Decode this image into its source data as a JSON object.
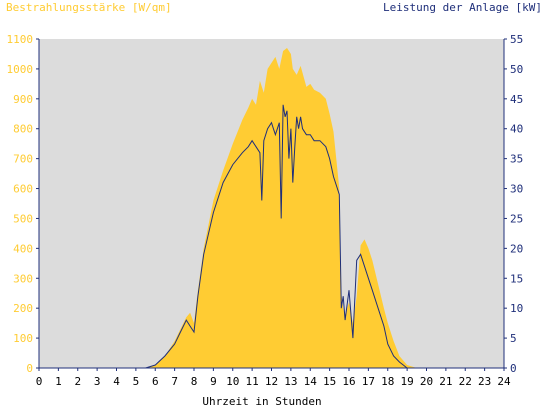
{
  "chart_data": {
    "type": "area",
    "title_left": "Bestrahlungsstärke [W/qm]",
    "title_right": "Leistung der Anlage [kW]",
    "xlabel": "Uhrzeit in Stunden",
    "x_ticks": [
      "0",
      "1",
      "2",
      "3",
      "4",
      "5",
      "6",
      "7",
      "8",
      "9",
      "10",
      "11",
      "12",
      "13",
      "14",
      "15",
      "16",
      "17",
      "18",
      "19",
      "20",
      "21",
      "22",
      "23",
      "24"
    ],
    "y_left_ticks": [
      "0",
      "100",
      "200",
      "300",
      "400",
      "500",
      "600",
      "700",
      "800",
      "900",
      "1000",
      "1100"
    ],
    "y_right_ticks": [
      "0",
      "5",
      "10",
      "15",
      "20",
      "25",
      "30",
      "35",
      "40",
      "45",
      "50",
      "55"
    ],
    "xlim": [
      0,
      24
    ],
    "ylim_left": [
      0,
      1100
    ],
    "ylim_right": [
      0,
      55
    ],
    "colors": {
      "irradiance": "#ffcc33",
      "power": "#1f2f7a",
      "background": "#dcdcdc",
      "left_axis_text": "#ffcc33",
      "right_axis_text": "#1f2f7a",
      "grid": "#1f2f7a"
    },
    "series": [
      {
        "axis": "left",
        "style": "area",
        "x": [
          0,
          5.5,
          6,
          6.5,
          7,
          7.3,
          7.6,
          7.8,
          8,
          8.2,
          8.5,
          9,
          9.5,
          10,
          10.5,
          10.8,
          11,
          11.2,
          11.4,
          11.6,
          11.8,
          12,
          12.2,
          12.4,
          12.6,
          12.8,
          13,
          13.1,
          13.3,
          13.5,
          13.8,
          14,
          14.2,
          14.5,
          14.8,
          15,
          15.2,
          15.5,
          15.6,
          15.7,
          15.8,
          16,
          16.2,
          16.4,
          16.6,
          16.8,
          17,
          17.2,
          17.5,
          17.8,
          18,
          18.3,
          18.6,
          19,
          19.5,
          20,
          24
        ],
        "y": [
          0,
          0,
          10,
          40,
          90,
          130,
          170,
          185,
          150,
          260,
          400,
          560,
          660,
          750,
          830,
          870,
          900,
          880,
          960,
          920,
          1000,
          1020,
          1040,
          1000,
          1060,
          1070,
          1050,
          1000,
          980,
          1010,
          940,
          950,
          930,
          920,
          900,
          850,
          790,
          600,
          250,
          200,
          180,
          220,
          150,
          240,
          410,
          430,
          400,
          360,
          280,
          200,
          150,
          90,
          40,
          10,
          0,
          0,
          0
        ]
      },
      {
        "axis": "right",
        "style": "line",
        "x": [
          0,
          5.5,
          6,
          6.5,
          7,
          7.3,
          7.6,
          7.8,
          8,
          8.2,
          8.5,
          9,
          9.5,
          10,
          10.5,
          10.8,
          11,
          11.2,
          11.4,
          11.5,
          11.6,
          11.8,
          12,
          12.1,
          12.2,
          12.4,
          12.5,
          12.6,
          12.7,
          12.8,
          12.9,
          13,
          13.1,
          13.2,
          13.3,
          13.4,
          13.5,
          13.6,
          13.8,
          14,
          14.2,
          14.5,
          14.8,
          15,
          15.2,
          15.5,
          15.6,
          15.7,
          15.8,
          16,
          16.2,
          16.4,
          16.6,
          16.8,
          17,
          17.2,
          17.5,
          17.8,
          18,
          18.3,
          18.6,
          19,
          19.5,
          20,
          24
        ],
        "y": [
          0,
          0,
          0.5,
          2,
          4,
          6,
          8,
          7,
          6,
          12,
          19,
          26,
          31,
          34,
          36,
          37,
          38,
          37,
          36,
          28,
          38,
          40,
          41,
          40,
          39,
          41,
          25,
          44,
          42,
          43,
          35,
          40,
          31,
          37,
          42,
          40,
          42,
          40,
          39,
          39,
          38,
          38,
          37,
          35,
          32,
          29,
          10,
          12,
          8,
          13,
          5,
          18,
          19,
          17,
          15,
          13,
          10,
          7,
          4,
          2,
          1,
          0,
          0,
          0,
          0
        ]
      }
    ]
  }
}
